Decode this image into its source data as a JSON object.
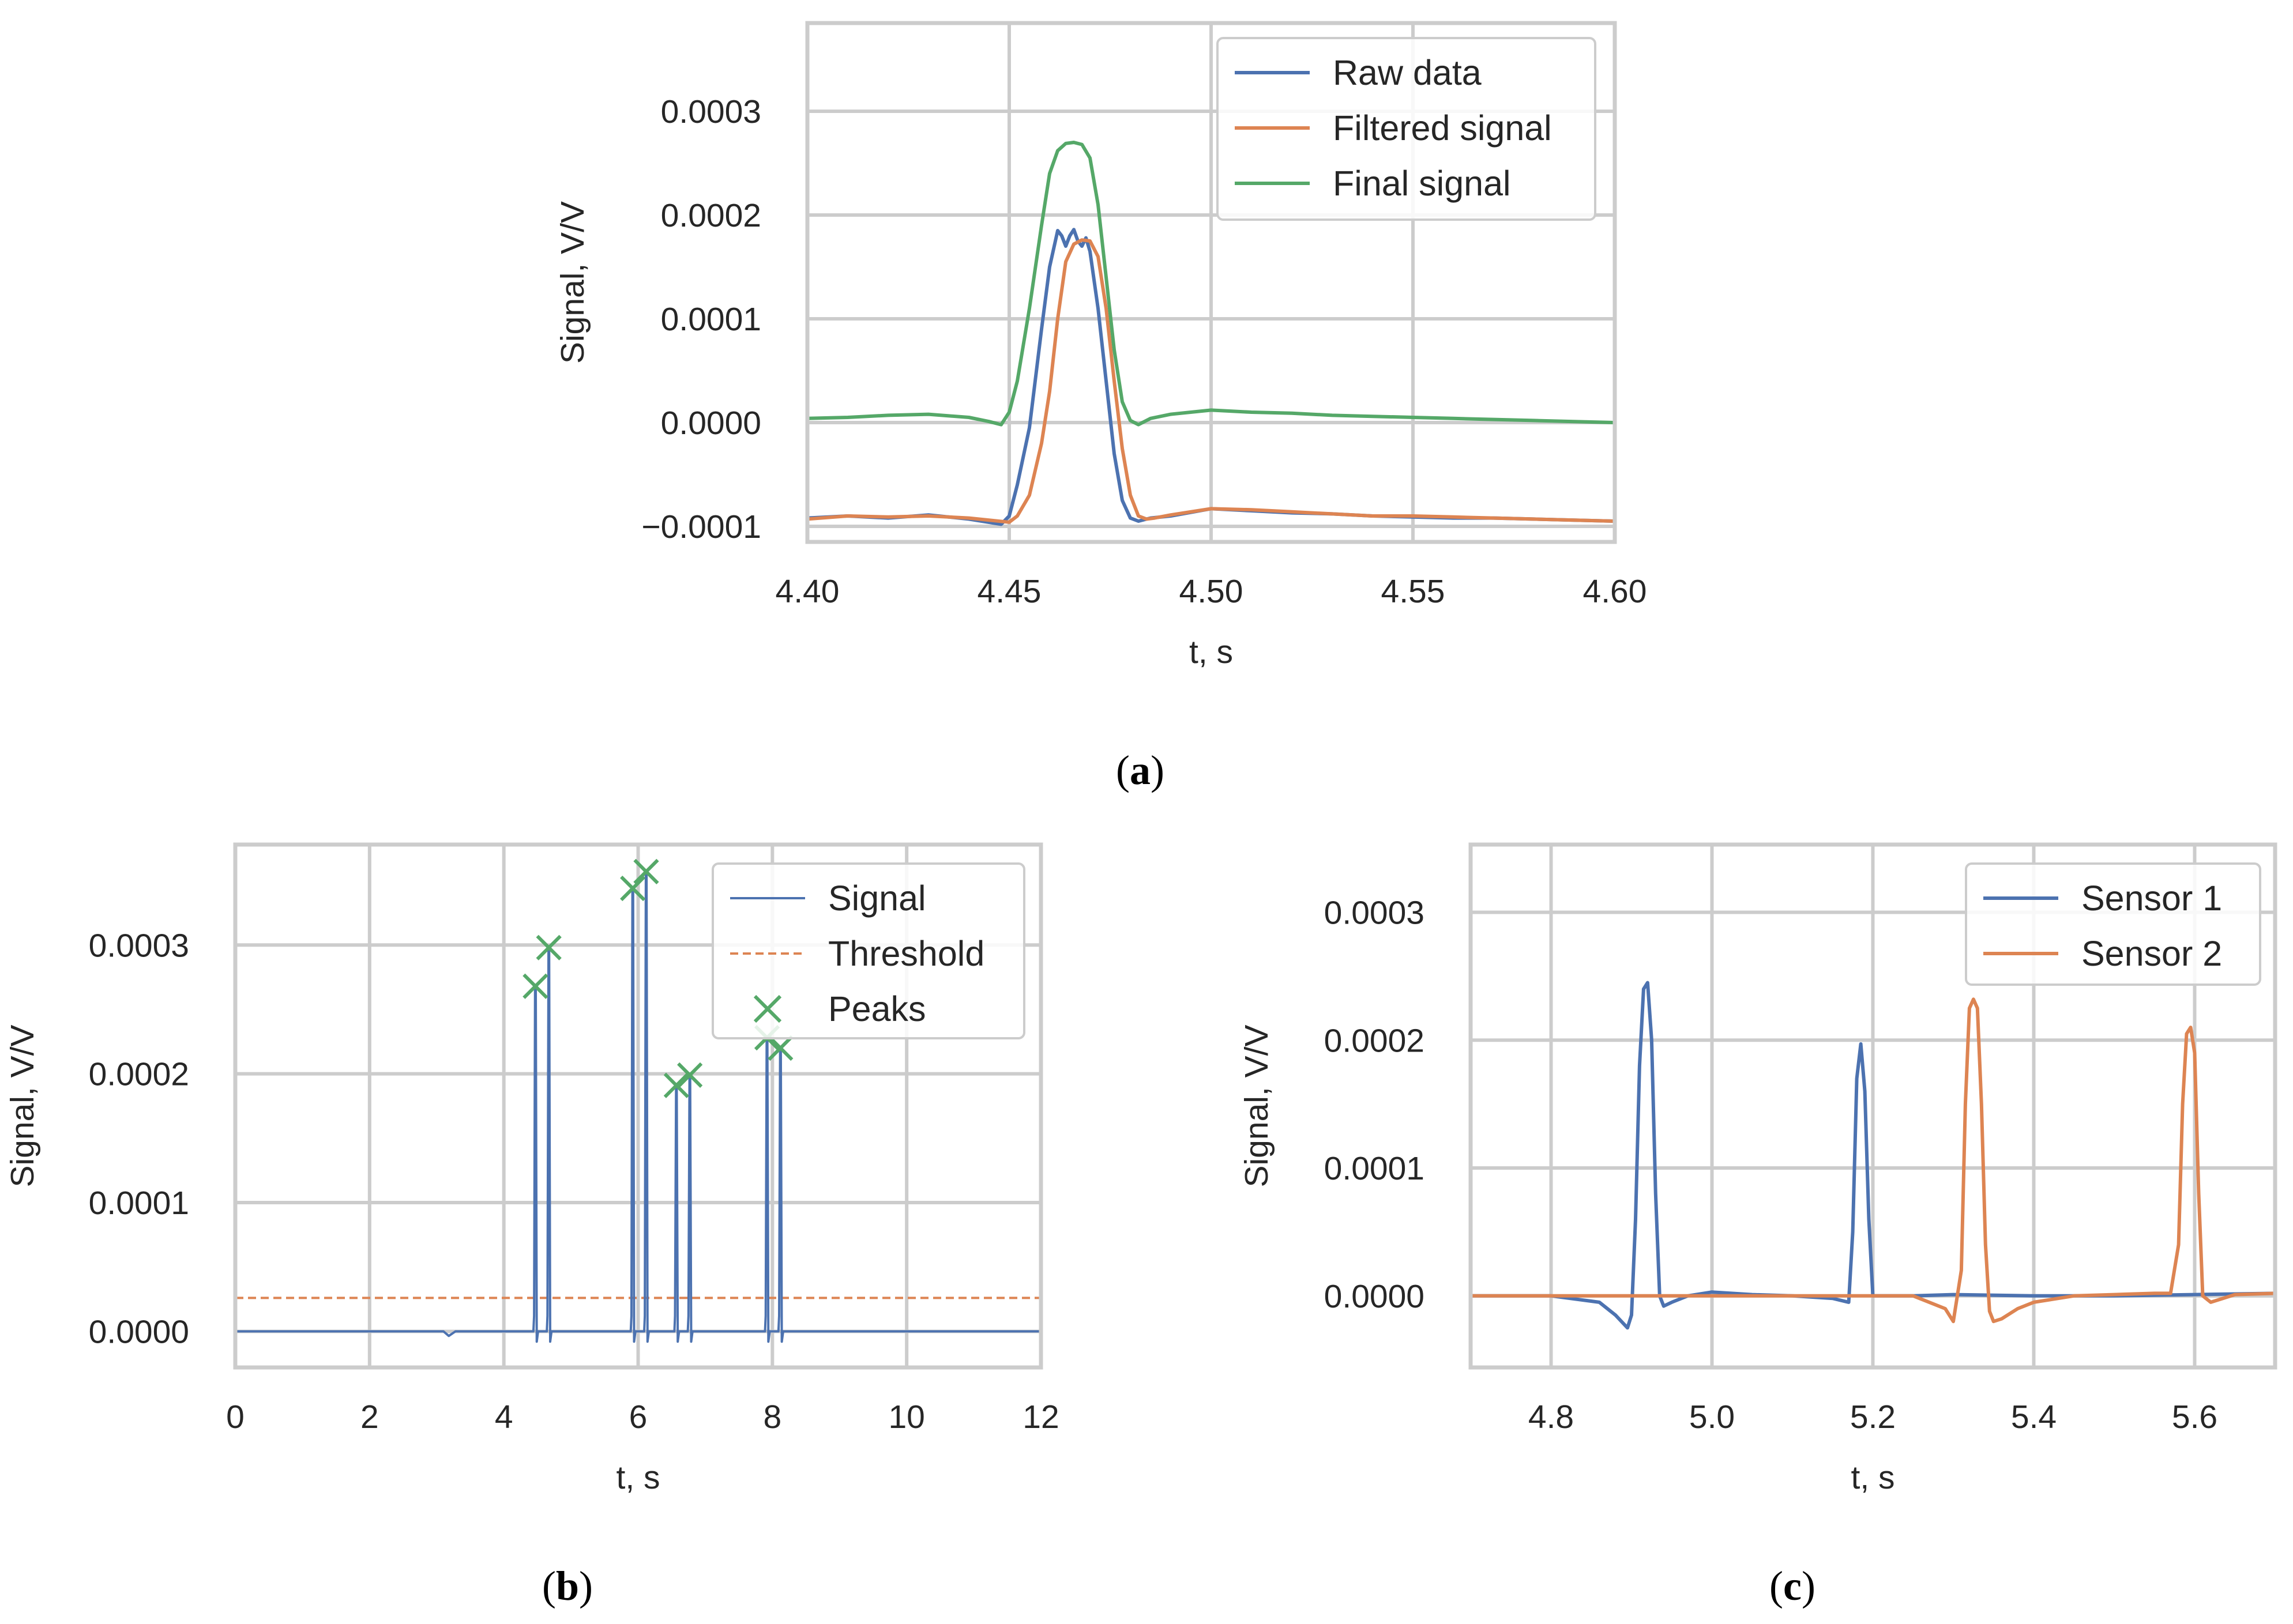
{
  "colors": {
    "blue": "#4c72b0",
    "orange": "#dd8452",
    "green": "#55a868",
    "grid": "#cccccc",
    "frame": "#cccccc",
    "text": "#262626"
  },
  "chart_data": [
    {
      "id": "a",
      "type": "line",
      "caption": "a",
      "xlabel": "t, s",
      "ylabel": "Signal, V/V",
      "xlim": [
        4.4,
        4.6
      ],
      "ylim": [
        -0.000115,
        0.000385
      ],
      "xticks": [
        4.4,
        4.45,
        4.5,
        4.55,
        4.6
      ],
      "xtick_labels": [
        "4.40",
        "4.45",
        "4.50",
        "4.55",
        "4.60"
      ],
      "yticks": [
        -0.0001,
        0.0,
        0.0001,
        0.0002,
        0.0003
      ],
      "ytick_labels": [
        "−0.0001",
        "0.0000",
        "0.0001",
        "0.0002",
        "0.0003"
      ],
      "grid": true,
      "legend_position": "top-right",
      "series": [
        {
          "name": "Raw data",
          "color": "blue",
          "style": "solid",
          "x": [
            4.4,
            4.41,
            4.42,
            4.43,
            4.44,
            4.448,
            4.45,
            4.452,
            4.455,
            4.458,
            4.46,
            4.462,
            4.463,
            4.464,
            4.465,
            4.466,
            4.467,
            4.468,
            4.469,
            4.47,
            4.472,
            4.474,
            4.476,
            4.478,
            4.48,
            4.482,
            4.485,
            4.49,
            4.5,
            4.51,
            4.52,
            4.53,
            4.54,
            4.55,
            4.56,
            4.57,
            4.58,
            4.59,
            4.6
          ],
          "y": [
            -9.2e-05,
            -9e-05,
            -9.2e-05,
            -8.9e-05,
            -9.3e-05,
            -9.8e-05,
            -9e-05,
            -6e-05,
            -5e-06,
            9e-05,
            0.00015,
            0.000185,
            0.00018,
            0.00017,
            0.00018,
            0.000186,
            0.000175,
            0.00017,
            0.000178,
            0.000165,
            0.00011,
            4e-05,
            -3e-05,
            -7.5e-05,
            -9.2e-05,
            -9.5e-05,
            -9.2e-05,
            -9e-05,
            -8.3e-05,
            -8.5e-05,
            -8.7e-05,
            -8.8e-05,
            -9e-05,
            -9.1e-05,
            -9.2e-05,
            -9.2e-05,
            -9.3e-05,
            -9.4e-05,
            -9.5e-05
          ]
        },
        {
          "name": "Filtered signal",
          "color": "orange",
          "style": "solid",
          "x": [
            4.4,
            4.41,
            4.42,
            4.43,
            4.44,
            4.45,
            4.452,
            4.455,
            4.458,
            4.46,
            4.462,
            4.464,
            4.466,
            4.468,
            4.47,
            4.472,
            4.474,
            4.476,
            4.478,
            4.48,
            4.482,
            4.484,
            4.486,
            4.49,
            4.5,
            4.51,
            4.52,
            4.53,
            4.54,
            4.55,
            4.56,
            4.57,
            4.58,
            4.59,
            4.6
          ],
          "y": [
            -9.3e-05,
            -9e-05,
            -9.1e-05,
            -9e-05,
            -9.2e-05,
            -9.6e-05,
            -9e-05,
            -7e-05,
            -2e-05,
            3e-05,
            0.0001,
            0.000155,
            0.000172,
            0.000176,
            0.000175,
            0.00016,
            0.00011,
            4e-05,
            -2.5e-05,
            -7e-05,
            -9e-05,
            -9.3e-05,
            -9.2e-05,
            -8.9e-05,
            -8.3e-05,
            -8.4e-05,
            -8.6e-05,
            -8.8e-05,
            -9e-05,
            -9e-05,
            -9.1e-05,
            -9.2e-05,
            -9.3e-05,
            -9.4e-05,
            -9.5e-05
          ]
        },
        {
          "name": "Final signal",
          "color": "green",
          "style": "solid",
          "x": [
            4.4,
            4.41,
            4.42,
            4.43,
            4.44,
            4.445,
            4.448,
            4.45,
            4.452,
            4.455,
            4.458,
            4.46,
            4.462,
            4.464,
            4.466,
            4.468,
            4.47,
            4.472,
            4.474,
            4.476,
            4.478,
            4.48,
            4.482,
            4.485,
            4.49,
            4.5,
            4.51,
            4.52,
            4.53,
            4.54,
            4.55,
            4.56,
            4.57,
            4.58,
            4.59,
            4.6
          ],
          "y": [
            4e-06,
            5e-06,
            7e-06,
            8e-06,
            5e-06,
            1e-06,
            -2e-06,
            1e-05,
            4e-05,
            0.00011,
            0.00019,
            0.00024,
            0.000262,
            0.000269,
            0.00027,
            0.000268,
            0.000255,
            0.00021,
            0.00014,
            7e-05,
            2e-05,
            2e-06,
            -2e-06,
            4e-06,
            8e-06,
            1.2e-05,
            1e-05,
            9e-06,
            7e-06,
            6e-06,
            5e-06,
            4e-06,
            3e-06,
            2e-06,
            1e-06,
            0.0
          ]
        }
      ]
    },
    {
      "id": "b",
      "type": "line",
      "caption": "b",
      "xlabel": "t, s",
      "ylabel": "Signal, V/V",
      "xlim": [
        0,
        12
      ],
      "ylim": [
        -2.8e-05,
        0.000378
      ],
      "xticks": [
        0,
        2,
        4,
        6,
        8,
        10,
        12
      ],
      "xtick_labels": [
        "0",
        "2",
        "4",
        "6",
        "8",
        "10",
        "12"
      ],
      "yticks": [
        0.0,
        0.0001,
        0.0002,
        0.0003
      ],
      "ytick_labels": [
        "0.0000",
        "0.0001",
        "0.0002",
        "0.0003"
      ],
      "grid": true,
      "legend_position": "top-right",
      "threshold": 2.6e-05,
      "baseline": 0.0,
      "signal_spikes": [
        {
          "t": 4.47,
          "peak": 0.000268
        },
        {
          "t": 4.67,
          "peak": 0.000298
        },
        {
          "t": 5.92,
          "peak": 0.000344
        },
        {
          "t": 6.12,
          "peak": 0.000357
        },
        {
          "t": 6.57,
          "peak": 0.000191
        },
        {
          "t": 6.77,
          "peak": 0.000199
        },
        {
          "t": 7.92,
          "peak": 0.000228
        },
        {
          "t": 8.12,
          "peak": 0.00022
        }
      ],
      "series": [
        {
          "name": "Signal",
          "color": "blue",
          "style": "solid"
        },
        {
          "name": "Threshold",
          "color": "orange",
          "style": "dashed"
        },
        {
          "name": "Peaks",
          "color": "green",
          "style": "x-marker"
        }
      ],
      "peaks": {
        "x": [
          4.47,
          4.67,
          5.92,
          6.12,
          6.57,
          6.77,
          7.92,
          8.12
        ],
        "y": [
          0.000268,
          0.000298,
          0.000344,
          0.000357,
          0.000191,
          0.000199,
          0.000228,
          0.00022
        ]
      }
    },
    {
      "id": "c",
      "type": "line",
      "caption": "c",
      "xlabel": "t, s",
      "ylabel": "Signal, V/V",
      "xlim": [
        4.7,
        5.7
      ],
      "ylim": [
        -5.6e-05,
        0.000353
      ],
      "xticks": [
        4.8,
        5.0,
        5.2,
        5.4,
        5.6
      ],
      "xtick_labels": [
        "4.8",
        "5.0",
        "5.2",
        "5.4",
        "5.6"
      ],
      "yticks": [
        0.0,
        0.0001,
        0.0002,
        0.0003
      ],
      "ytick_labels": [
        "0.0000",
        "0.0001",
        "0.0002",
        "0.0003"
      ],
      "grid": true,
      "legend_position": "top-right",
      "series": [
        {
          "name": "Sensor 1",
          "color": "blue",
          "style": "solid",
          "x": [
            4.7,
            4.8,
            4.86,
            4.88,
            4.895,
            4.9,
            4.905,
            4.91,
            4.915,
            4.92,
            4.925,
            4.93,
            4.935,
            4.94,
            4.95,
            4.97,
            5.0,
            5.05,
            5.1,
            5.15,
            5.17,
            5.175,
            5.18,
            5.185,
            5.19,
            5.195,
            5.2,
            5.21,
            5.25,
            5.3,
            5.4,
            5.5,
            5.6,
            5.7
          ],
          "y": [
            0.0,
            0.0,
            -5e-06,
            -1.5e-05,
            -2.5e-05,
            -1.5e-05,
            6e-05,
            0.00018,
            0.00024,
            0.000245,
            0.0002,
            8e-05,
            0.0,
            -8e-06,
            -5e-06,
            0.0,
            3e-06,
            1e-06,
            0.0,
            -2e-06,
            -5e-06,
            5e-05,
            0.00017,
            0.000197,
            0.00016,
            6e-05,
            0.0,
            0.0,
            0.0,
            1e-06,
            0.0,
            0.0,
            1e-06,
            2e-06
          ]
        },
        {
          "name": "Sensor 2",
          "color": "orange",
          "style": "solid",
          "x": [
            4.7,
            4.8,
            4.9,
            5.0,
            5.1,
            5.2,
            5.25,
            5.29,
            5.3,
            5.31,
            5.315,
            5.32,
            5.325,
            5.33,
            5.335,
            5.34,
            5.345,
            5.35,
            5.36,
            5.38,
            5.4,
            5.45,
            5.5,
            5.55,
            5.57,
            5.58,
            5.585,
            5.59,
            5.595,
            5.6,
            5.605,
            5.61,
            5.62,
            5.65,
            5.7
          ],
          "y": [
            0.0,
            0.0,
            0.0,
            0.0,
            0.0,
            0.0,
            0.0,
            -1e-05,
            -2e-05,
            2e-05,
            0.00015,
            0.000225,
            0.000232,
            0.000225,
            0.00015,
            4e-05,
            -1.2e-05,
            -2e-05,
            -1.8e-05,
            -1e-05,
            -5e-06,
            0.0,
            1e-06,
            2e-06,
            2e-06,
            4e-05,
            0.00015,
            0.000205,
            0.00021,
            0.00019,
            8e-05,
            0.0,
            -5e-06,
            1e-06,
            2e-06
          ]
        }
      ]
    }
  ]
}
